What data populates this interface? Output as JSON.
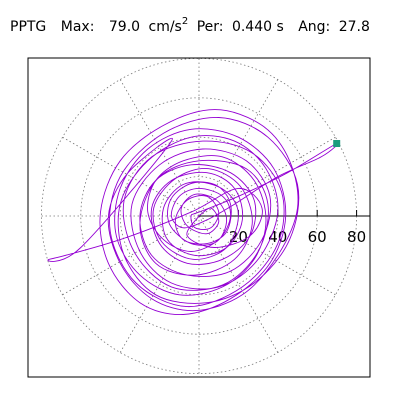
{
  "header": {
    "station": "PPTG",
    "max_label": "Max:",
    "max_value": "79.0",
    "max_unit": "cm/s",
    "max_unit_exp": "2",
    "per_label": "Per:",
    "per_value": "0.440 s",
    "ang_label": "Ang:",
    "ang_value": "27.8"
  },
  "colors": {
    "trace": "#9400d3",
    "marker": "#1a9c7e",
    "grid": "#777777",
    "axis": "#000000",
    "frame": "#000000"
  },
  "chart_data": {
    "type": "scatter",
    "description_mode": "polar orbit trace",
    "x_ticks": [
      20,
      40,
      60,
      80
    ],
    "x_tick_labels": [
      "20",
      "40",
      "60",
      "80"
    ],
    "ring_radii": [
      20,
      40,
      60,
      80
    ],
    "spoke_angles_deg": [
      0,
      30,
      60,
      90,
      120,
      150,
      180,
      210,
      240,
      270,
      300,
      330
    ],
    "range": [
      -93,
      93
    ],
    "grid": true,
    "peak_point": {
      "x": 69.9,
      "y": 36.8
    },
    "trace": [
      [
        0,
        0
      ],
      [
        6,
        4
      ],
      [
        10,
        -3
      ],
      [
        4,
        -9
      ],
      [
        -6,
        -5
      ],
      [
        -9,
        4
      ],
      [
        -2,
        11
      ],
      [
        9,
        8
      ],
      [
        14,
        -2
      ],
      [
        9,
        -13
      ],
      [
        -4,
        -14
      ],
      [
        -15,
        -4
      ],
      [
        -14,
        9
      ],
      [
        -2,
        17
      ],
      [
        13,
        13
      ],
      [
        20,
        1
      ],
      [
        14,
        -16
      ],
      [
        -3,
        -22
      ],
      [
        -19,
        -13
      ],
      [
        -23,
        4
      ],
      [
        -12,
        19
      ],
      [
        5,
        24
      ],
      [
        21,
        15
      ],
      [
        27,
        -4
      ],
      [
        18,
        -22
      ],
      [
        -2,
        -30
      ],
      [
        -22,
        -24
      ],
      [
        -30,
        -4
      ],
      [
        -21,
        19
      ],
      [
        0,
        28
      ],
      [
        24,
        24
      ],
      [
        35,
        6
      ],
      [
        30,
        -18
      ],
      [
        12,
        -35
      ],
      [
        -14,
        -36
      ],
      [
        -33,
        -18
      ],
      [
        -38,
        8
      ],
      [
        -24,
        30
      ],
      [
        2,
        38
      ],
      [
        27,
        32
      ],
      [
        42,
        12
      ],
      [
        40,
        -14
      ],
      [
        22,
        -36
      ],
      [
        -6,
        -46
      ],
      [
        -32,
        -34
      ],
      [
        -45,
        -8
      ],
      [
        -40,
        20
      ],
      [
        -18,
        42
      ],
      [
        10,
        50
      ],
      [
        35,
        40
      ],
      [
        50,
        16
      ],
      [
        46,
        -12
      ],
      [
        28,
        -34
      ],
      [
        4,
        -44
      ],
      [
        -22,
        -40
      ],
      [
        -38,
        -20
      ],
      [
        -40,
        6
      ],
      [
        -26,
        28
      ],
      [
        -4,
        40
      ],
      [
        18,
        38
      ],
      [
        34,
        24
      ],
      [
        40,
        2
      ],
      [
        30,
        -22
      ],
      [
        10,
        -36
      ],
      [
        -14,
        -34
      ],
      [
        -30,
        -18
      ],
      [
        -34,
        6
      ],
      [
        -20,
        26
      ],
      [
        2,
        34
      ],
      [
        24,
        28
      ],
      [
        36,
        10
      ],
      [
        32,
        -12
      ],
      [
        16,
        -28
      ],
      [
        -6,
        -30
      ],
      [
        -24,
        -20
      ],
      [
        -30,
        0
      ],
      [
        -22,
        18
      ],
      [
        -4,
        26
      ],
      [
        16,
        22
      ],
      [
        28,
        8
      ],
      [
        26,
        -10
      ],
      [
        12,
        -22
      ],
      [
        -6,
        -24
      ],
      [
        -20,
        -14
      ],
      [
        -24,
        4
      ],
      [
        -14,
        18
      ],
      [
        4,
        22
      ],
      [
        18,
        14
      ],
      [
        22,
        -2
      ],
      [
        14,
        -16
      ],
      [
        -2,
        -20
      ],
      [
        -16,
        -12
      ],
      [
        -18,
        4
      ],
      [
        -8,
        16
      ],
      [
        8,
        16
      ],
      [
        16,
        6
      ],
      [
        14,
        -8
      ],
      [
        4,
        -14
      ],
      [
        -8,
        -12
      ],
      [
        -12,
        -2
      ],
      [
        -6,
        8
      ],
      [
        4,
        10
      ],
      [
        10,
        2
      ],
      [
        6,
        -6
      ],
      [
        -2,
        -6
      ],
      [
        -4,
        0
      ],
      [
        0,
        2
      ],
      [
        20,
        10
      ],
      [
        45,
        22
      ],
      [
        69.9,
        36.8
      ],
      [
        62,
        30
      ],
      [
        40,
        20
      ],
      [
        18,
        6
      ],
      [
        4,
        -2
      ],
      [
        -8,
        -6
      ],
      [
        -14,
        0
      ],
      [
        -10,
        10
      ],
      [
        0,
        14
      ],
      [
        12,
        10
      ],
      [
        16,
        0
      ],
      [
        10,
        -12
      ],
      [
        -4,
        -18
      ],
      [
        -18,
        -12
      ],
      [
        -26,
        2
      ],
      [
        -22,
        18
      ],
      [
        -8,
        28
      ],
      [
        12,
        30
      ],
      [
        28,
        18
      ],
      [
        34,
        -2
      ],
      [
        28,
        -22
      ],
      [
        12,
        -36
      ],
      [
        -10,
        -40
      ],
      [
        -30,
        -30
      ],
      [
        -42,
        -10
      ],
      [
        -40,
        14
      ],
      [
        -26,
        34
      ],
      [
        -4,
        44
      ],
      [
        20,
        40
      ],
      [
        38,
        24
      ],
      [
        44,
        0
      ],
      [
        36,
        -24
      ],
      [
        16,
        -42
      ],
      [
        -8,
        -50
      ],
      [
        -30,
        -44
      ],
      [
        -46,
        -24
      ],
      [
        -50,
        2
      ],
      [
        -40,
        28
      ],
      [
        -18,
        46
      ],
      [
        8,
        54
      ],
      [
        32,
        46
      ],
      [
        46,
        28
      ],
      [
        50,
        4
      ],
      [
        40,
        -20
      ],
      [
        22,
        -40
      ],
      [
        -2,
        -48
      ],
      [
        -24,
        -42
      ],
      [
        -40,
        -24
      ],
      [
        -46,
        0
      ],
      [
        -36,
        22
      ],
      [
        -14,
        38
      ],
      [
        -60,
        -16
      ],
      [
        -76,
        -22
      ],
      [
        -40,
        -12
      ],
      [
        -4,
        2
      ],
      [
        20,
        14
      ],
      [
        32,
        4
      ],
      [
        26,
        -10
      ],
      [
        8,
        -16
      ],
      [
        -6,
        -10
      ],
      [
        0,
        0
      ]
    ]
  }
}
